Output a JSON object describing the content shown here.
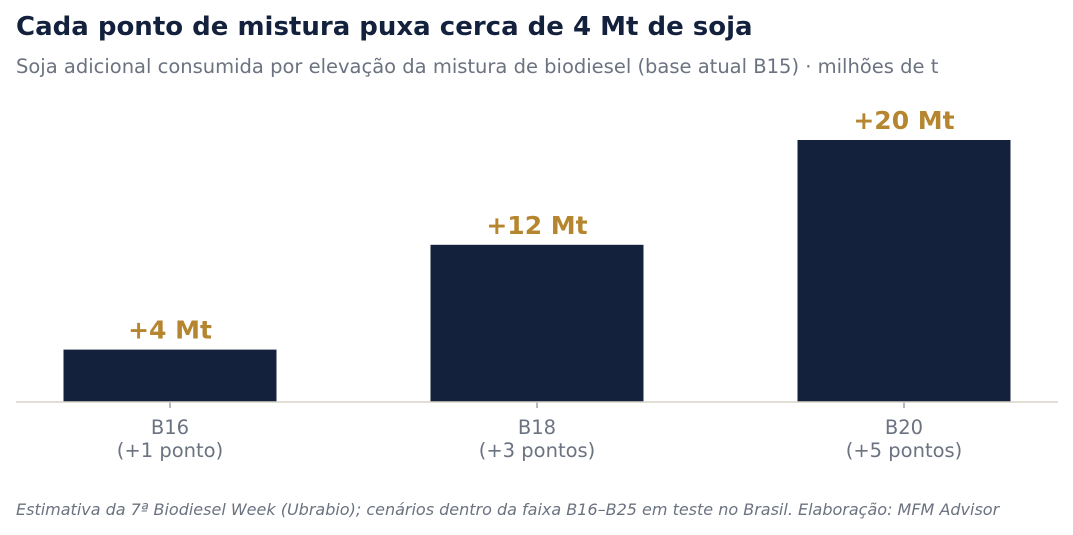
{
  "header": {
    "title": "Cada ponto de mistura puxa cerca de 4 Mt de soja",
    "subtitle": "Soja adicional consumida por elevação da mistura de biodiesel (base atual B15) · milhões de t"
  },
  "footnote": "Estimativa da 7ª Biodiesel Week (Ubrabio); cenários dentro da faixa B16–B25 em teste no Brasil. Elaboração: MFM Advisor",
  "colors": {
    "bar": "#13213c",
    "label": "#b5862f",
    "axis": "#d8d3c8",
    "tick_text": "#6b7280"
  },
  "chart_data": {
    "type": "bar",
    "categories": [
      "B16",
      "B18",
      "B20"
    ],
    "category_sublabels": [
      "(+1 ponto)",
      "(+3 pontos)",
      "(+5 pontos)"
    ],
    "values": [
      4,
      12,
      20
    ],
    "data_labels": [
      "+4 Mt",
      "+12 Mt",
      "+20 Mt"
    ],
    "ylim": [
      0,
      20
    ],
    "grid": false,
    "legend": "none"
  }
}
